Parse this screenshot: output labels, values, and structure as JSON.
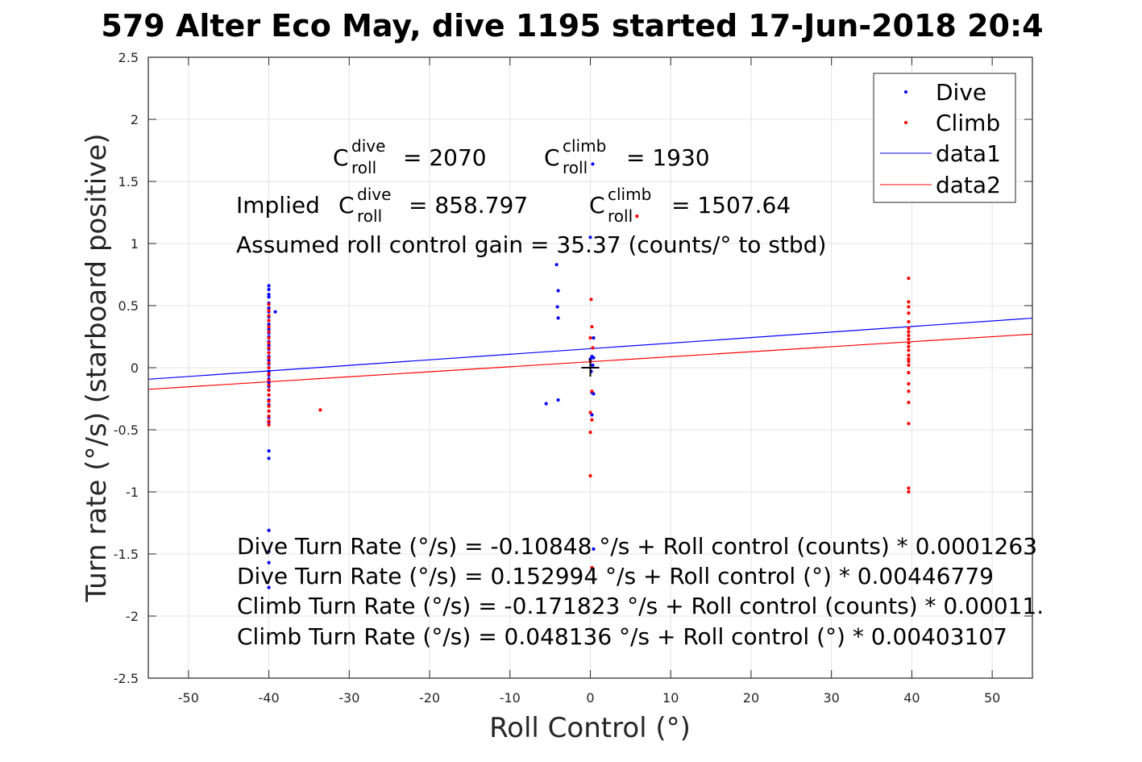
{
  "title": "579 Alter Eco May, dive 1195 started 17-Jun-2018 20:4",
  "chart_data": {
    "type": "scatter",
    "title": "579 Alter Eco May, dive 1195 started 17-Jun-2018 20:4",
    "xlabel": "Roll Control (°)",
    "ylabel": "Turn rate (°/s) (starboard positive)",
    "xlim": [
      -55,
      55
    ],
    "ylim": [
      -2.5,
      2.5
    ],
    "xticks": [
      -50,
      -40,
      -30,
      -20,
      -10,
      0,
      10,
      20,
      30,
      40,
      50
    ],
    "yticks": [
      -2.5,
      -2,
      -1.5,
      -1,
      -0.5,
      0,
      0.5,
      1,
      1.5,
      2,
      2.5
    ],
    "xtick_labels": [
      "-50",
      "-40",
      "-30",
      "-20",
      "-10",
      "0",
      "10",
      "20",
      "30",
      "40",
      "50"
    ],
    "ytick_labels": [
      "-2.5",
      "-2",
      "-1.5",
      "-1",
      "-0.5",
      "0",
      "0.5",
      "1",
      "1.5",
      "2",
      "2.5"
    ],
    "grid": true,
    "legend_position": "top-right",
    "series": [
      {
        "name": "Dive",
        "kind": "points",
        "color": "#0000ff",
        "points": [
          [
            -40,
            0.66
          ],
          [
            -40,
            0.63
          ],
          [
            -40,
            0.59
          ],
          [
            -40,
            0.57
          ],
          [
            -40,
            0.52
          ],
          [
            -40,
            0.48
          ],
          [
            -40,
            0.45
          ],
          [
            -40,
            0.41
          ],
          [
            -40,
            0.38
          ],
          [
            -40,
            0.35
          ],
          [
            -40,
            0.31
          ],
          [
            -40,
            0.28
          ],
          [
            -40,
            0.25
          ],
          [
            -40,
            0.21
          ],
          [
            -40,
            0.18
          ],
          [
            -40,
            0.15
          ],
          [
            -40,
            0.12
          ],
          [
            -40,
            0.09
          ],
          [
            -40,
            0.06
          ],
          [
            -40,
            0.03
          ],
          [
            -40,
            0.0
          ],
          [
            -40,
            -0.03
          ],
          [
            -40,
            -0.06
          ],
          [
            -40,
            -0.09
          ],
          [
            -40,
            -0.12
          ],
          [
            -40,
            -0.15
          ],
          [
            -40,
            -0.18
          ],
          [
            -40,
            -0.22
          ],
          [
            -40,
            -0.26
          ],
          [
            -40,
            -0.3
          ],
          [
            -40,
            -0.35
          ],
          [
            -40,
            -0.4
          ],
          [
            -40,
            -0.44
          ],
          [
            -40,
            -0.67
          ],
          [
            -40,
            -0.73
          ],
          [
            -40,
            -1.31
          ],
          [
            -40,
            -1.48
          ],
          [
            -40,
            -1.57
          ],
          [
            -40,
            -1.77
          ],
          [
            -39.2,
            0.45
          ],
          [
            -4.2,
            0.83
          ],
          [
            -4.0,
            0.62
          ],
          [
            -4.1,
            0.49
          ],
          [
            -4.0,
            0.4
          ],
          [
            -5.5,
            -0.29
          ],
          [
            -4.0,
            -0.26
          ],
          [
            0.0,
            1.05
          ],
          [
            0.3,
            1.64
          ],
          [
            0.4,
            0.24
          ],
          [
            0.2,
            0.09
          ],
          [
            0.4,
            0.08
          ],
          [
            0.0,
            0.07
          ],
          [
            0.3,
            0.02
          ],
          [
            0.1,
            -0.03
          ],
          [
            0.2,
            -0.2
          ],
          [
            0.4,
            -0.21
          ],
          [
            0.2,
            -0.38
          ],
          [
            0.4,
            -1.46
          ]
        ]
      },
      {
        "name": "Climb",
        "kind": "points",
        "color": "#ff0000",
        "points": [
          [
            -40,
            0.51
          ],
          [
            -40,
            0.46
          ],
          [
            -40,
            0.42
          ],
          [
            -40,
            0.38
          ],
          [
            -40,
            0.33
          ],
          [
            -40,
            0.29
          ],
          [
            -40,
            0.24
          ],
          [
            -40,
            0.2
          ],
          [
            -40,
            0.16
          ],
          [
            -40,
            0.12
          ],
          [
            -40,
            0.08
          ],
          [
            -40,
            0.04
          ],
          [
            -40,
            0.0
          ],
          [
            -40,
            -0.05
          ],
          [
            -40,
            -0.1
          ],
          [
            -40,
            -0.14
          ],
          [
            -40,
            -0.18
          ],
          [
            -40,
            -0.22
          ],
          [
            -40,
            -0.27
          ],
          [
            -40,
            -0.31
          ],
          [
            -40,
            -0.35
          ],
          [
            -40,
            -0.39
          ],
          [
            -40,
            -0.43
          ],
          [
            -40,
            -0.46
          ],
          [
            -33.6,
            -0.34
          ],
          [
            0.1,
            0.55
          ],
          [
            0.2,
            0.33
          ],
          [
            0.0,
            0.24
          ],
          [
            0.3,
            0.16
          ],
          [
            0.0,
            0.05
          ],
          [
            0.2,
            -0.19
          ],
          [
            0.0,
            -0.36
          ],
          [
            0.2,
            -0.42
          ],
          [
            0.0,
            -0.52
          ],
          [
            0.0,
            -0.87
          ],
          [
            0.2,
            -1.61
          ],
          [
            5.8,
            1.22
          ],
          [
            39.6,
            0.72
          ],
          [
            39.6,
            0.53
          ],
          [
            39.6,
            0.49
          ],
          [
            39.6,
            0.44
          ],
          [
            39.6,
            0.37
          ],
          [
            39.6,
            0.32
          ],
          [
            39.6,
            0.29
          ],
          [
            39.6,
            0.26
          ],
          [
            39.6,
            0.23
          ],
          [
            39.6,
            0.2
          ],
          [
            39.6,
            0.17
          ],
          [
            39.6,
            0.14
          ],
          [
            39.6,
            0.1
          ],
          [
            39.6,
            0.07
          ],
          [
            39.6,
            0.05
          ],
          [
            39.6,
            0.02
          ],
          [
            39.6,
            -0.04
          ],
          [
            39.6,
            -0.13
          ],
          [
            39.6,
            -0.19
          ],
          [
            39.6,
            -0.28
          ],
          [
            39.6,
            -0.45
          ],
          [
            39.6,
            -0.97
          ],
          [
            39.6,
            -1.0
          ]
        ]
      },
      {
        "name": "data1",
        "kind": "line",
        "color": "#0000ff",
        "points": [
          [
            -55,
            -0.093
          ],
          [
            55,
            0.399
          ]
        ]
      },
      {
        "name": "data2",
        "kind": "line",
        "color": "#ff0000",
        "points": [
          [
            -55,
            -0.174
          ],
          [
            55,
            0.27
          ]
        ]
      }
    ],
    "origin_marker": [
      0,
      0
    ],
    "annotations": {
      "c_roll_dive": {
        "base": "C",
        "sub": "roll",
        "sup": "dive",
        "value": "= 2070"
      },
      "c_roll_climb": {
        "base": "C",
        "sub": "roll",
        "sup": "climb",
        "value": "= 1930"
      },
      "implied_prefix": "Implied ",
      "implied_dive": {
        "base": "C",
        "sub": "roll",
        "sup": "dive",
        "value": "= 858.797"
      },
      "implied_climb": {
        "base": "C",
        "sub": "roll",
        "sup": "climb",
        "value": "= 1507.64"
      },
      "gain": "Assumed roll control gain = 35.37 (counts/° to stbd)",
      "eq1": "Dive Turn Rate (°/s) = -0.10848 °/s + Roll control (counts) * 0.0001263",
      "eq2": "Dive Turn Rate (°/s) = 0.152994 °/s + Roll control (°) * 0.00446779",
      "eq3": "Climb Turn Rate (°/s) = -0.171823 °/s + Roll control (counts) * 0.00011.",
      "eq4": "Climb Turn Rate (°/s) = 0.048136 °/s + Roll control (°) * 0.00403107"
    }
  }
}
